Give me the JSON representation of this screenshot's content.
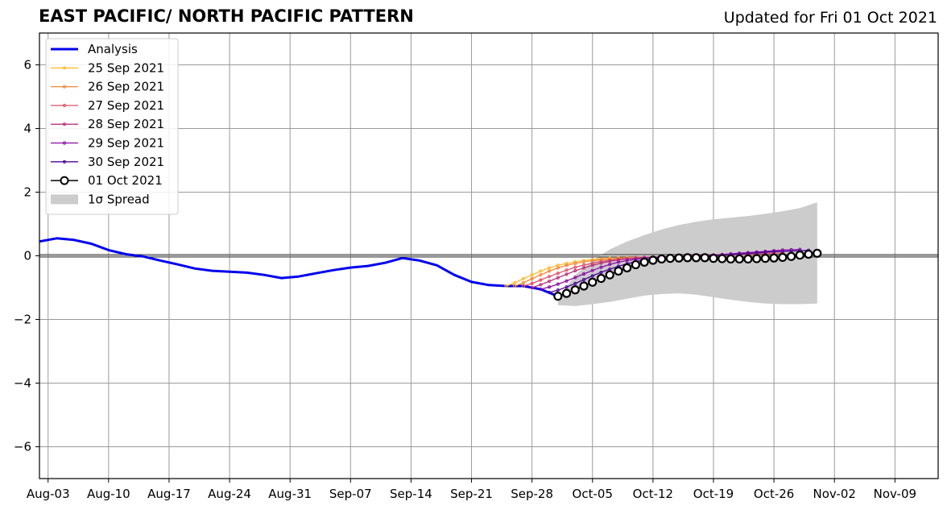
{
  "header": {
    "title": "EAST PACIFIC/ NORTH PACIFIC PATTERN",
    "updated": "Updated for Fri 01 Oct 2021"
  },
  "chart_data": {
    "type": "line",
    "title": "EAST PACIFIC/ NORTH PACIFIC PATTERN",
    "subtitle": "Updated for Fri 01 Oct 2021",
    "xlabel": "",
    "ylabel": "",
    "x_date_range": [
      "2021-08-02",
      "2021-11-14"
    ],
    "ylim": [
      -7,
      7
    ],
    "yticks": [
      -6,
      -4,
      -2,
      0,
      2,
      4,
      6
    ],
    "ytick_labels": [
      "−6",
      "−4",
      "−2",
      "0",
      "2",
      "4",
      "6"
    ],
    "xticks": [
      "2021-08-03",
      "2021-08-10",
      "2021-08-17",
      "2021-08-24",
      "2021-08-31",
      "2021-09-07",
      "2021-09-14",
      "2021-09-21",
      "2021-09-28",
      "2021-10-05",
      "2021-10-12",
      "2021-10-19",
      "2021-10-26",
      "2021-11-02",
      "2021-11-09"
    ],
    "xtick_labels": [
      "Aug-03",
      "Aug-10",
      "Aug-17",
      "Aug-24",
      "Aug-31",
      "Sep-07",
      "Sep-14",
      "Sep-21",
      "Sep-28",
      "Oct-05",
      "Oct-12",
      "Oct-19",
      "Oct-26",
      "Nov-02",
      "Nov-09"
    ],
    "grid": true,
    "zero_line": true,
    "legend_position": "top-left",
    "legend": [
      "Analysis",
      "25 Sep 2021",
      "26 Sep 2021",
      "27 Sep 2021",
      "28 Sep 2021",
      "29 Sep 2021",
      "30 Sep 2021",
      "01 Oct 2021",
      "1σ Spread"
    ],
    "analysis": {
      "name": "Analysis",
      "color": "#0000ee",
      "points": [
        [
          "2021-08-02",
          0.45
        ],
        [
          "2021-08-04",
          0.55
        ],
        [
          "2021-08-06",
          0.5
        ],
        [
          "2021-08-08",
          0.38
        ],
        [
          "2021-08-10",
          0.18
        ],
        [
          "2021-08-12",
          0.05
        ],
        [
          "2021-08-14",
          -0.02
        ],
        [
          "2021-08-16",
          -0.15
        ],
        [
          "2021-08-18",
          -0.27
        ],
        [
          "2021-08-20",
          -0.4
        ],
        [
          "2021-08-22",
          -0.47
        ],
        [
          "2021-08-24",
          -0.5
        ],
        [
          "2021-08-26",
          -0.53
        ],
        [
          "2021-08-28",
          -0.6
        ],
        [
          "2021-08-30",
          -0.7
        ],
        [
          "2021-09-01",
          -0.65
        ],
        [
          "2021-09-03",
          -0.55
        ],
        [
          "2021-09-05",
          -0.45
        ],
        [
          "2021-09-07",
          -0.37
        ],
        [
          "2021-09-09",
          -0.32
        ],
        [
          "2021-09-11",
          -0.22
        ],
        [
          "2021-09-13",
          -0.07
        ],
        [
          "2021-09-15",
          -0.15
        ],
        [
          "2021-09-17",
          -0.3
        ],
        [
          "2021-09-19",
          -0.6
        ],
        [
          "2021-09-21",
          -0.82
        ],
        [
          "2021-09-23",
          -0.92
        ],
        [
          "2021-09-25",
          -0.95
        ],
        [
          "2021-09-27",
          -0.95
        ],
        [
          "2021-09-29",
          -1.05
        ],
        [
          "2021-10-01",
          -1.27
        ]
      ]
    },
    "series": [
      {
        "name": "25 Sep 2021",
        "color": "#fcbc30",
        "start": "2021-09-25",
        "values": [
          -0.95,
          -0.85,
          -0.72,
          -0.6,
          -0.48,
          -0.38,
          -0.3,
          -0.24,
          -0.19,
          -0.15,
          -0.12,
          -0.1,
          -0.08,
          -0.07,
          -0.06,
          -0.05,
          -0.05,
          -0.05,
          -0.05,
          -0.05,
          -0.05,
          -0.05,
          -0.05,
          -0.05,
          -0.05,
          -0.05,
          -0.05,
          -0.05,
          -0.05,
          -0.05,
          -0.05
        ]
      },
      {
        "name": "26 Sep 2021",
        "color": "#f4893b",
        "start": "2021-09-26",
        "values": [
          -0.95,
          -0.85,
          -0.72,
          -0.6,
          -0.48,
          -0.38,
          -0.3,
          -0.24,
          -0.19,
          -0.15,
          -0.12,
          -0.1,
          -0.08,
          -0.06,
          -0.05,
          -0.05,
          -0.04,
          -0.04,
          -0.04,
          -0.04,
          -0.03,
          -0.03,
          -0.03,
          -0.03,
          -0.02,
          -0.02,
          -0.01,
          -0.01,
          0.0,
          0.0,
          0.01
        ]
      },
      {
        "name": "27 Sep 2021",
        "color": "#de5065",
        "start": "2021-09-27",
        "values": [
          -0.95,
          -0.87,
          -0.76,
          -0.65,
          -0.55,
          -0.45,
          -0.36,
          -0.29,
          -0.23,
          -0.18,
          -0.14,
          -0.11,
          -0.09,
          -0.07,
          -0.06,
          -0.05,
          -0.04,
          -0.03,
          -0.03,
          -0.02,
          -0.01,
          0.0,
          0.01,
          0.02,
          0.03,
          0.04,
          0.05,
          0.06,
          0.07,
          0.08,
          0.09
        ]
      },
      {
        "name": "28 Sep 2021",
        "color": "#b8317a",
        "start": "2021-09-28",
        "values": [
          -1.0,
          -0.91,
          -0.8,
          -0.69,
          -0.58,
          -0.47,
          -0.38,
          -0.3,
          -0.23,
          -0.17,
          -0.13,
          -0.1,
          -0.07,
          -0.05,
          -0.04,
          -0.03,
          -0.02,
          -0.01,
          0.0,
          0.01,
          0.02,
          0.03,
          0.04,
          0.06,
          0.08,
          0.1,
          0.11,
          0.12,
          0.13,
          0.14,
          0.15
        ]
      },
      {
        "name": "29 Sep 2021",
        "color": "#8a0da5",
        "start": "2021-09-29",
        "values": [
          -1.05,
          -0.98,
          -0.89,
          -0.79,
          -0.68,
          -0.57,
          -0.46,
          -0.36,
          -0.27,
          -0.2,
          -0.15,
          -0.11,
          -0.08,
          -0.06,
          -0.04,
          -0.03,
          -0.02,
          -0.01,
          0.0,
          0.01,
          0.02,
          0.04,
          0.06,
          0.08,
          0.1,
          0.12,
          0.14,
          0.16,
          0.18,
          0.19,
          0.2
        ]
      },
      {
        "name": "30 Sep 2021",
        "color": "#4c0496",
        "start": "2021-09-30",
        "values": [
          -1.15,
          -1.08,
          -0.98,
          -0.87,
          -0.75,
          -0.63,
          -0.52,
          -0.42,
          -0.33,
          -0.25,
          -0.18,
          -0.13,
          -0.09,
          -0.07,
          -0.05,
          -0.04,
          -0.03,
          -0.02,
          -0.01,
          0.0,
          0.01,
          0.03,
          0.05,
          0.07,
          0.09,
          0.11,
          0.13,
          0.14,
          0.15,
          0.16,
          0.17
        ]
      },
      {
        "name": "01 Oct 2021",
        "color": "#000000",
        "start": "2021-10-01",
        "values": [
          -1.27,
          -1.18,
          -1.07,
          -0.95,
          -0.83,
          -0.71,
          -0.6,
          -0.48,
          -0.38,
          -0.28,
          -0.2,
          -0.14,
          -0.1,
          -0.08,
          -0.07,
          -0.06,
          -0.06,
          -0.06,
          -0.08,
          -0.09,
          -0.1,
          -0.1,
          -0.1,
          -0.09,
          -0.08,
          -0.07,
          -0.05,
          -0.02,
          0.02,
          0.05,
          0.08
        ]
      }
    ],
    "spread": {
      "name": "1σ Spread",
      "color": "#cccccc",
      "upper": [
        [
          "2021-10-01",
          -1.35
        ],
        [
          "2021-10-03",
          -0.6
        ],
        [
          "2021-10-05",
          -0.15
        ],
        [
          "2021-10-07",
          0.2
        ],
        [
          "2021-10-09",
          0.45
        ],
        [
          "2021-10-11",
          0.65
        ],
        [
          "2021-10-13",
          0.83
        ],
        [
          "2021-10-15",
          0.97
        ],
        [
          "2021-10-17",
          1.07
        ],
        [
          "2021-10-19",
          1.15
        ],
        [
          "2021-10-21",
          1.2
        ],
        [
          "2021-10-23",
          1.25
        ],
        [
          "2021-10-25",
          1.32
        ],
        [
          "2021-10-27",
          1.4
        ],
        [
          "2021-10-29",
          1.5
        ],
        [
          "2021-10-31",
          1.68
        ]
      ],
      "lower": [
        [
          "2021-10-01",
          -1.55
        ],
        [
          "2021-10-03",
          -1.58
        ],
        [
          "2021-10-05",
          -1.52
        ],
        [
          "2021-10-07",
          -1.45
        ],
        [
          "2021-10-09",
          -1.35
        ],
        [
          "2021-10-11",
          -1.25
        ],
        [
          "2021-10-13",
          -1.2
        ],
        [
          "2021-10-15",
          -1.18
        ],
        [
          "2021-10-17",
          -1.22
        ],
        [
          "2021-10-19",
          -1.3
        ],
        [
          "2021-10-21",
          -1.38
        ],
        [
          "2021-10-23",
          -1.45
        ],
        [
          "2021-10-25",
          -1.5
        ],
        [
          "2021-10-27",
          -1.52
        ],
        [
          "2021-10-29",
          -1.52
        ],
        [
          "2021-10-31",
          -1.5
        ]
      ]
    }
  }
}
